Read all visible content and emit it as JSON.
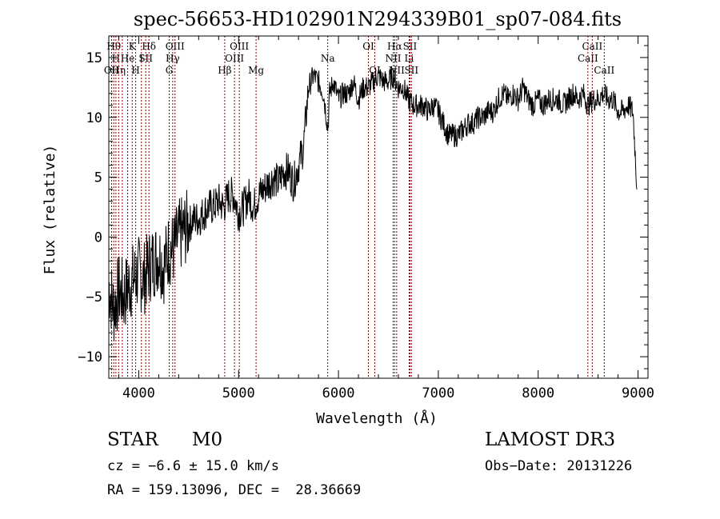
{
  "chart_data": {
    "type": "line",
    "title": "spec-56653-HD102901N294339B01_sp07-084.fits",
    "xlabel": "Wavelength (Å)",
    "ylabel": "Flux (relative)",
    "xlim": [
      3700,
      9100
    ],
    "ylim": [
      -11.8,
      16.8
    ],
    "xticks": [
      4000,
      5000,
      6000,
      7000,
      8000,
      9000
    ],
    "yticks": [
      -10,
      -5,
      0,
      5,
      10,
      15
    ],
    "grid": false,
    "line_color": "#000000",
    "marker_color": "#8b0000",
    "series": [
      {
        "name": "",
        "x": [
          3700,
          3750,
          3800,
          3850,
          3900,
          3950,
          4000,
          4050,
          4100,
          4150,
          4200,
          4250,
          4300,
          4350,
          4400,
          4450,
          4500,
          4550,
          4600,
          4650,
          4700,
          4750,
          4800,
          4850,
          4900,
          4950,
          5000,
          5050,
          5100,
          5150,
          5200,
          5250,
          5300,
          5350,
          5400,
          5450,
          5500,
          5550,
          5600,
          5650,
          5700,
          5750,
          5800,
          5850,
          5880,
          5895,
          5910,
          5950,
          6000,
          6050,
          6100,
          6150,
          6200,
          6250,
          6300,
          6350,
          6400,
          6450,
          6500,
          6550,
          6600,
          6650,
          6700,
          6750,
          6800,
          6850,
          6900,
          6950,
          7000,
          7050,
          7100,
          7150,
          7200,
          7250,
          7300,
          7350,
          7400,
          7450,
          7500,
          7550,
          7600,
          7650,
          7700,
          7750,
          7800,
          7850,
          7900,
          7950,
          8000,
          8050,
          8100,
          8150,
          8200,
          8250,
          8300,
          8350,
          8400,
          8450,
          8500,
          8550,
          8600,
          8650,
          8700,
          8750,
          8800,
          8850,
          8900,
          8950,
          8990
        ],
        "y": [
          -4,
          -6,
          -4.5,
          -5,
          -4,
          -3.5,
          -3,
          -3.5,
          -2.5,
          -2,
          -1.5,
          -2.5,
          -1,
          -1,
          0,
          0.5,
          1,
          1.5,
          1.5,
          2,
          2.5,
          2.5,
          3,
          2.5,
          3.5,
          3.5,
          2,
          2.5,
          3.5,
          2.5,
          3.5,
          4,
          4.5,
          5,
          4.5,
          5.5,
          5.5,
          4.5,
          6,
          7.5,
          12.5,
          13.5,
          13,
          12,
          10,
          9,
          12,
          13,
          11.5,
          12,
          12,
          13,
          11.5,
          12.5,
          12.5,
          13,
          13.5,
          13,
          13,
          13.5,
          12.5,
          12.5,
          11.5,
          11,
          11,
          11,
          10.5,
          11,
          10.5,
          9.5,
          8.5,
          8.5,
          8.5,
          9,
          9.5,
          9.5,
          10,
          10,
          10.5,
          10.5,
          11.5,
          12,
          11.5,
          12,
          11.5,
          12.5,
          11.5,
          11,
          11.5,
          11,
          11.5,
          11.5,
          11.5,
          11,
          11.5,
          12,
          11.5,
          12,
          11,
          11.5,
          11.5,
          12,
          11.5,
          11.5,
          10.5,
          10.5,
          11,
          10.5,
          4
        ]
      }
    ],
    "line_markers": [
      {
        "wavelength": 3750,
        "label": "Hθ",
        "row": 1
      },
      {
        "wavelength": 3728,
        "label": "OII",
        "row": 3
      },
      {
        "wavelength": 3771,
        "label": "H",
        "row": 2
      },
      {
        "wavelength": 3798,
        "label": "Hη",
        "row": 3
      },
      {
        "wavelength": 3835,
        "label": "",
        "row": 0
      },
      {
        "wavelength": 3889,
        "label": "He",
        "row": 2
      },
      {
        "wavelength": 3934,
        "label": "K",
        "row": 1
      },
      {
        "wavelength": 3969,
        "label": "H",
        "row": 3
      },
      {
        "wavelength": 4026,
        "label": "I",
        "row": 2
      },
      {
        "wavelength": 4070,
        "label": "SII",
        "row": 2
      },
      {
        "wavelength": 4102,
        "label": "Hδ",
        "row": 1
      },
      {
        "wavelength": 4305,
        "label": "G",
        "row": 3
      },
      {
        "wavelength": 4340,
        "label": "Hγ",
        "row": 2
      },
      {
        "wavelength": 4363,
        "label": "OIII",
        "row": 1
      },
      {
        "wavelength": 4861,
        "label": "Hβ",
        "row": 3
      },
      {
        "wavelength": 4959,
        "label": "OIII",
        "row": 2
      },
      {
        "wavelength": 5007,
        "label": "OIII",
        "row": 1
      },
      {
        "wavelength": 5175,
        "label": "Mg",
        "row": 3
      },
      {
        "wavelength": 5893,
        "label": "Na",
        "row": 2
      },
      {
        "wavelength": 6300,
        "label": "OI",
        "row": 1
      },
      {
        "wavelength": 6364,
        "label": "OI",
        "row": 3
      },
      {
        "wavelength": 6548,
        "label": "NII",
        "row": 2
      },
      {
        "wavelength": 6563,
        "label": "Hα",
        "row": 1
      },
      {
        "wavelength": 6583,
        "label": "NII",
        "row": 3
      },
      {
        "wavelength": 6708,
        "label": "Li",
        "row": 2
      },
      {
        "wavelength": 6716,
        "label": "SII",
        "row": 1
      },
      {
        "wavelength": 6731,
        "label": "SII",
        "row": 3
      },
      {
        "wavelength": 8498,
        "label": "CaII",
        "row": 2
      },
      {
        "wavelength": 8542,
        "label": "CaII",
        "row": 1
      },
      {
        "wavelength": 8662,
        "label": "CaII",
        "row": 3
      }
    ]
  },
  "footer": {
    "object_class": "STAR",
    "subclass": "M0",
    "survey": "LAMOST DR3",
    "cz": "cz = −6.6 ± 15.0 km/s",
    "obs_date": "Obs−Date: 20131226",
    "coords": "RA = 159.13096, DEC =  28.36669"
  }
}
